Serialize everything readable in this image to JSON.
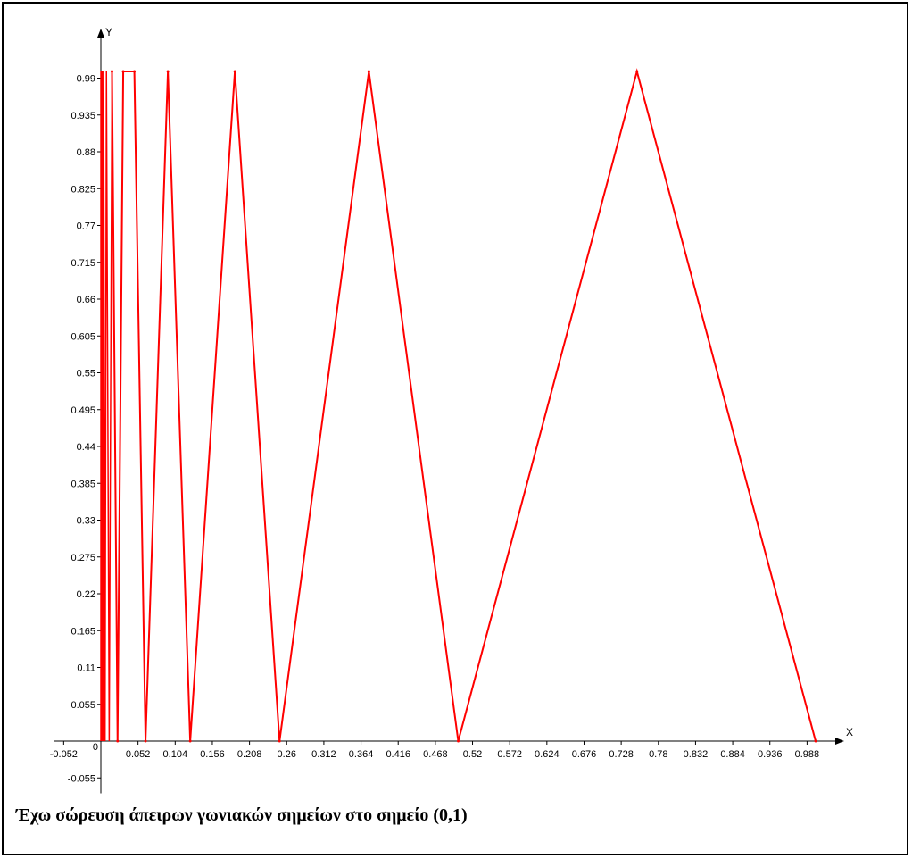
{
  "caption": "Έχω σώρευση άπειρων γωνιακών σημείων στο σημείο (0,1)",
  "chart_data": {
    "type": "line",
    "title": "",
    "xlabel": "X",
    "ylabel": "Y",
    "xlim": [
      -0.065,
      1.03
    ],
    "ylim": [
      -0.078,
      1.06
    ],
    "x_ticks": [
      "-0.052",
      "0",
      "0.052",
      "0.104",
      "0.156",
      "0.208",
      "0.26",
      "0.312",
      "0.364",
      "0.416",
      "0.468",
      "0.52",
      "0.572",
      "0.624",
      "0.676",
      "0.728",
      "0.78",
      "0.832",
      "0.884",
      "0.936",
      "0.988"
    ],
    "y_ticks": [
      "-0.055",
      "0.055",
      "0.11",
      "0.165",
      "0.22",
      "0.275",
      "0.33",
      "0.385",
      "0.44",
      "0.495",
      "0.55",
      "0.605",
      "0.66",
      "0.715",
      "0.77",
      "0.825",
      "0.88",
      "0.935",
      "0.99"
    ],
    "grid": false,
    "line_color": "#ff0000",
    "series": [
      {
        "points": [
          [
            0.0156,
            1.0
          ],
          [
            0.0234,
            0.0
          ],
          [
            0.0313,
            1.0
          ],
          [
            0.0469,
            1.0
          ],
          [
            0.0625,
            0.0
          ],
          [
            0.0938,
            1.0
          ],
          [
            0.125,
            0.0
          ],
          [
            0.1875,
            1.0
          ],
          [
            0.25,
            0.0
          ],
          [
            0.375,
            1.0
          ],
          [
            0.5,
            0.0
          ],
          [
            0.75,
            1.0
          ],
          [
            1.0,
            0.0
          ]
        ]
      }
    ]
  }
}
